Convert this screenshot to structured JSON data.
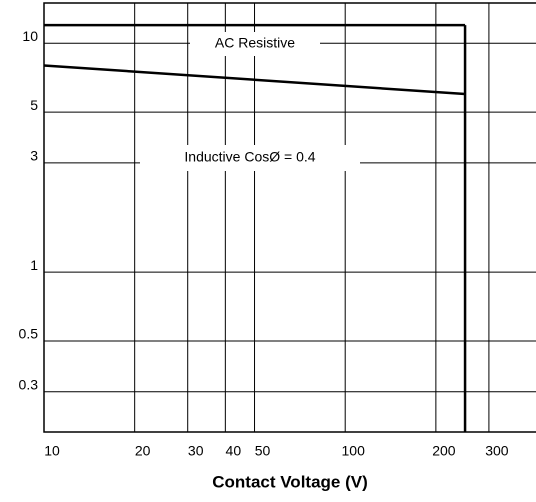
{
  "chart_data": {
    "type": "line",
    "log_x": true,
    "log_y": true,
    "grid": true,
    "x_label": "Contact Voltage (V)",
    "xlim": [
      10,
      430
    ],
    "xticks": [
      10,
      20,
      30,
      40,
      50,
      100,
      200,
      300
    ],
    "ylim": [
      0.2,
      15
    ],
    "yticks": [
      0.3,
      0.5,
      1,
      3,
      5,
      10
    ],
    "max_voltage": 250,
    "series": [
      {
        "name": "AC Resistive",
        "color": "#000000",
        "x": [
          10,
          250
        ],
        "values": [
          12,
          12
        ]
      },
      {
        "name": "Inductive CosØ = 0.4",
        "color": "#000000",
        "x": [
          10,
          250
        ],
        "values": [
          8,
          6
        ]
      }
    ]
  }
}
